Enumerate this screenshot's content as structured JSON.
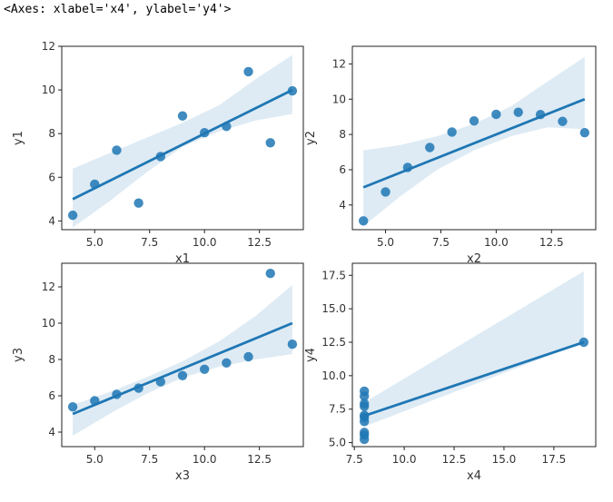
{
  "output_text": "<Axes: xlabel='x4', ylabel='y4'>",
  "colors": {
    "point": "#1f77b4",
    "line": "#1f77b4",
    "band": "#1f77b4"
  },
  "chart_data": [
    {
      "type": "scatter",
      "xlabel": "x1",
      "ylabel": "y1",
      "xlim": [
        3.5,
        14.5
      ],
      "ylim": [
        3.6,
        12.0
      ],
      "xticks": [
        "5.0",
        "7.5",
        "10.0",
        "12.5"
      ],
      "xtick_values": [
        5,
        7.5,
        10,
        12.5
      ],
      "yticks": [
        "4",
        "6",
        "8",
        "10",
        "12"
      ],
      "ytick_values": [
        4,
        6,
        8,
        10,
        12
      ],
      "x": [
        4,
        5,
        6,
        7,
        8,
        9,
        10,
        11,
        12,
        13,
        14
      ],
      "y": [
        4.26,
        5.68,
        7.24,
        4.82,
        6.95,
        8.81,
        8.04,
        8.33,
        10.84,
        7.58,
        9.96
      ],
      "fit": {
        "x": [
          4,
          14
        ],
        "y": [
          5.0,
          10.0
        ]
      },
      "ci_upper": [
        6.4,
        7.1,
        7.8,
        8.5,
        9.3,
        10.5,
        11.6
      ],
      "ci_lower": [
        3.7,
        4.9,
        6.2,
        7.4,
        8.1,
        8.6,
        8.9
      ],
      "ci_x": [
        4,
        5.67,
        7.33,
        9,
        10.67,
        12.33,
        14
      ]
    },
    {
      "type": "scatter",
      "xlabel": "x2",
      "ylabel": "y2",
      "xlim": [
        3.5,
        14.5
      ],
      "ylim": [
        2.6,
        13.0
      ],
      "xticks": [
        "5.0",
        "7.5",
        "10.0",
        "12.5"
      ],
      "xtick_values": [
        5,
        7.5,
        10,
        12.5
      ],
      "yticks": [
        "4",
        "6",
        "8",
        "10",
        "12"
      ],
      "ytick_values": [
        4,
        6,
        8,
        10,
        12
      ],
      "x": [
        4,
        5,
        6,
        7,
        8,
        9,
        10,
        11,
        12,
        13,
        14
      ],
      "y": [
        3.1,
        4.74,
        6.13,
        7.26,
        8.14,
        8.77,
        9.14,
        9.26,
        9.13,
        8.74,
        8.1
      ],
      "fit": {
        "x": [
          4,
          14
        ],
        "y": [
          5.0,
          10.0
        ]
      },
      "ci_upper": [
        7.1,
        7.4,
        7.9,
        8.6,
        9.6,
        11.0,
        12.4
      ],
      "ci_lower": [
        2.8,
        4.5,
        6.0,
        7.1,
        7.9,
        8.4,
        8.3
      ],
      "ci_x": [
        4,
        5.67,
        7.33,
        9,
        10.67,
        12.33,
        14
      ]
    },
    {
      "type": "scatter",
      "xlabel": "x3",
      "ylabel": "y3",
      "xlim": [
        3.5,
        14.5
      ],
      "ylim": [
        3.2,
        13.3
      ],
      "xticks": [
        "5.0",
        "7.5",
        "10.0",
        "12.5"
      ],
      "xtick_values": [
        5,
        7.5,
        10,
        12.5
      ],
      "yticks": [
        "4",
        "6",
        "8",
        "10",
        "12"
      ],
      "ytick_values": [
        4,
        6,
        8,
        10,
        12
      ],
      "x": [
        4,
        5,
        6,
        7,
        8,
        9,
        10,
        11,
        12,
        13,
        14
      ],
      "y": [
        5.39,
        5.73,
        6.08,
        6.42,
        6.77,
        7.11,
        7.46,
        7.81,
        8.15,
        12.74,
        8.84
      ],
      "fit": {
        "x": [
          4,
          14
        ],
        "y": [
          5.0,
          10.0
        ]
      },
      "ci_upper": [
        5.5,
        6.2,
        7.0,
        7.9,
        9.0,
        10.4,
        12.1
      ],
      "ci_lower": [
        3.8,
        5.0,
        6.1,
        7.0,
        7.6,
        8.0,
        8.3
      ],
      "ci_x": [
        4,
        5.67,
        7.33,
        9,
        10.67,
        12.33,
        14
      ]
    },
    {
      "type": "scatter",
      "xlabel": "x4",
      "ylabel": "y4",
      "xlim": [
        7.4,
        19.6
      ],
      "ylim": [
        4.7,
        18.4
      ],
      "xticks": [
        "7.5",
        "10.0",
        "12.5",
        "15.0",
        "17.5"
      ],
      "xtick_values": [
        7.5,
        10,
        12.5,
        15,
        17.5
      ],
      "yticks": [
        "5.0",
        "7.5",
        "10.0",
        "12.5",
        "15.0",
        "17.5"
      ],
      "ytick_values": [
        5,
        7.5,
        10,
        12.5,
        15,
        17.5
      ],
      "x": [
        8,
        8,
        8,
        8,
        8,
        8,
        8,
        19,
        8,
        8,
        8
      ],
      "y": [
        6.58,
        5.76,
        7.71,
        8.84,
        8.47,
        7.04,
        5.25,
        12.5,
        5.56,
        7.91,
        6.89
      ],
      "fit": {
        "x": [
          8,
          19
        ],
        "y": [
          7.0,
          12.5
        ]
      },
      "ci_upper": [
        8.0,
        17.8
      ],
      "ci_lower": [
        6.2,
        12.5
      ],
      "ci_x": [
        8,
        19
      ]
    }
  ]
}
